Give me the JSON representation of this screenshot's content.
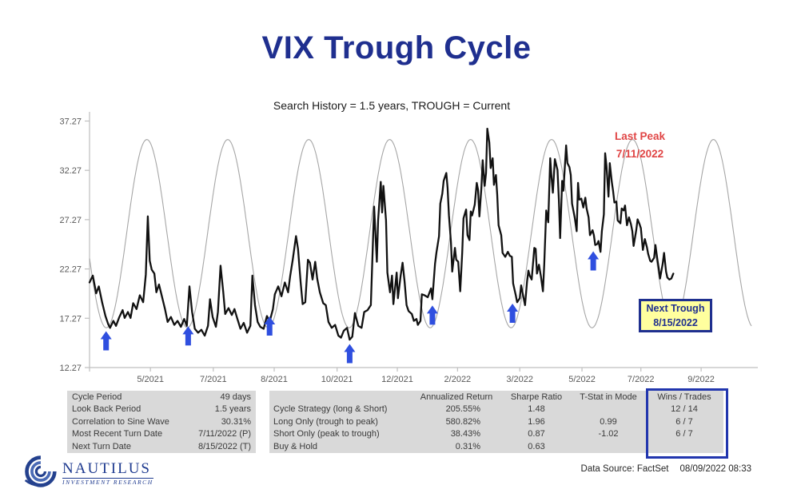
{
  "slide": {
    "title": "VIX Trough Cycle"
  },
  "chart_data": {
    "type": "line",
    "title": "Search History = 1.5 years, TROUGH = Current",
    "xlabel": "",
    "ylabel": "",
    "ylim": [
      12.27,
      38.2
    ],
    "grid": false,
    "axis_color": "#bfbfbf",
    "yticks": [
      "12.27",
      "17.27",
      "22.27",
      "27.27",
      "32.27",
      "37.27"
    ],
    "xticks": [
      {
        "label": "5/2021",
        "pos": 0.092
      },
      {
        "label": "7/2021",
        "pos": 0.187
      },
      {
        "label": "8/2021",
        "pos": 0.279
      },
      {
        "label": "10/2021",
        "pos": 0.374
      },
      {
        "label": "12/2021",
        "pos": 0.465
      },
      {
        "label": "2/2022",
        "pos": 0.556
      },
      {
        "label": "3/2022",
        "pos": 0.65
      },
      {
        "label": "5/2022",
        "pos": 0.744
      },
      {
        "label": "7/2022",
        "pos": 0.833
      },
      {
        "label": "9/2022",
        "pos": 0.924
      }
    ],
    "series": [
      {
        "name": "Trough Cycle Sine Wave",
        "type": "sine",
        "color": "#a6a6a6",
        "min": 16.3,
        "max": 35.4,
        "period": 0.1223,
        "first_trough": 0.0254
      },
      {
        "name": "VIX",
        "type": "line",
        "color": "#111111",
        "points": [
          [
            0,
            20.9
          ],
          [
            0.005,
            21.6
          ],
          [
            0.01,
            19.8
          ],
          [
            0.014,
            20.5
          ],
          [
            0.019,
            18.9
          ],
          [
            0.024,
            17.5
          ],
          [
            0.028,
            16.7
          ],
          [
            0.031,
            16.3
          ],
          [
            0.036,
            17.0
          ],
          [
            0.04,
            16.5
          ],
          [
            0.045,
            17.4
          ],
          [
            0.05,
            18.1
          ],
          [
            0.053,
            17.3
          ],
          [
            0.058,
            17.9
          ],
          [
            0.062,
            17.3
          ],
          [
            0.066,
            18.8
          ],
          [
            0.071,
            18.2
          ],
          [
            0.076,
            19.6
          ],
          [
            0.081,
            18.9
          ],
          [
            0.085,
            21.7
          ],
          [
            0.088,
            27.6
          ],
          [
            0.091,
            23.1
          ],
          [
            0.094,
            22.2
          ],
          [
            0.098,
            21.8
          ],
          [
            0.101,
            19.9
          ],
          [
            0.105,
            20.7
          ],
          [
            0.11,
            19.3
          ],
          [
            0.114,
            18.2
          ],
          [
            0.118,
            16.9
          ],
          [
            0.123,
            17.4
          ],
          [
            0.128,
            16.6
          ],
          [
            0.133,
            17.0
          ],
          [
            0.138,
            16.4
          ],
          [
            0.143,
            17.2
          ],
          [
            0.147,
            16.5
          ],
          [
            0.151,
            20.5
          ],
          [
            0.155,
            17.9
          ],
          [
            0.159,
            16.2
          ],
          [
            0.164,
            15.8
          ],
          [
            0.169,
            16.1
          ],
          [
            0.174,
            15.5
          ],
          [
            0.179,
            16.5
          ],
          [
            0.182,
            19.2
          ],
          [
            0.186,
            17.4
          ],
          [
            0.191,
            16.4
          ],
          [
            0.194,
            17.9
          ],
          [
            0.198,
            22.6
          ],
          [
            0.202,
            19.9
          ],
          [
            0.205,
            17.7
          ],
          [
            0.21,
            18.3
          ],
          [
            0.215,
            17.6
          ],
          [
            0.219,
            18.2
          ],
          [
            0.223,
            17.3
          ],
          [
            0.228,
            16.2
          ],
          [
            0.233,
            16.8
          ],
          [
            0.238,
            15.8
          ],
          [
            0.243,
            16.5
          ],
          [
            0.246,
            21.6
          ],
          [
            0.25,
            18.6
          ],
          [
            0.254,
            16.9
          ],
          [
            0.258,
            16.4
          ],
          [
            0.263,
            16.2
          ],
          [
            0.268,
            17.5
          ],
          [
            0.272,
            16.9
          ],
          [
            0.277,
            18.2
          ],
          [
            0.28,
            19.7
          ],
          [
            0.285,
            20.5
          ],
          [
            0.29,
            19.5
          ],
          [
            0.295,
            20.9
          ],
          [
            0.3,
            19.9
          ],
          [
            0.303,
            21.5
          ],
          [
            0.307,
            23.2
          ],
          [
            0.312,
            25.6
          ],
          [
            0.315,
            24.3
          ],
          [
            0.319,
            20.9
          ],
          [
            0.322,
            18.7
          ],
          [
            0.326,
            18.9
          ],
          [
            0.33,
            23.2
          ],
          [
            0.333,
            22.9
          ],
          [
            0.337,
            21.2
          ],
          [
            0.341,
            23.0
          ],
          [
            0.344,
            21.3
          ],
          [
            0.348,
            19.9
          ],
          [
            0.353,
            18.8
          ],
          [
            0.357,
            18.6
          ],
          [
            0.361,
            16.9
          ],
          [
            0.366,
            16.3
          ],
          [
            0.371,
            16.6
          ],
          [
            0.376,
            15.5
          ],
          [
            0.38,
            15.3
          ],
          [
            0.384,
            16.0
          ],
          [
            0.389,
            16.3
          ],
          [
            0.393,
            15.1
          ],
          [
            0.397,
            15.4
          ],
          [
            0.401,
            17.8
          ],
          [
            0.406,
            16.5
          ],
          [
            0.411,
            16.3
          ],
          [
            0.415,
            17.9
          ],
          [
            0.42,
            18.1
          ],
          [
            0.425,
            18.6
          ],
          [
            0.43,
            28.6
          ],
          [
            0.434,
            23.0
          ],
          [
            0.436,
            27.2
          ],
          [
            0.44,
            31.1
          ],
          [
            0.442,
            28.0
          ],
          [
            0.444,
            30.7
          ],
          [
            0.448,
            27.2
          ],
          [
            0.45,
            21.9
          ],
          [
            0.454,
            19.9
          ],
          [
            0.457,
            21.6
          ],
          [
            0.459,
            18.7
          ],
          [
            0.464,
            21.9
          ],
          [
            0.466,
            19.3
          ],
          [
            0.47,
            21.6
          ],
          [
            0.473,
            22.9
          ],
          [
            0.476,
            21.0
          ],
          [
            0.479,
            18.6
          ],
          [
            0.482,
            18.0
          ],
          [
            0.487,
            17.7
          ],
          [
            0.49,
            17.0
          ],
          [
            0.494,
            17.2
          ],
          [
            0.496,
            16.6
          ],
          [
            0.5,
            17.0
          ],
          [
            0.502,
            19.7
          ],
          [
            0.506,
            19.6
          ],
          [
            0.511,
            19.4
          ],
          [
            0.516,
            20.3
          ],
          [
            0.518,
            19.2
          ],
          [
            0.522,
            22.8
          ],
          [
            0.524,
            23.9
          ],
          [
            0.528,
            25.6
          ],
          [
            0.53,
            28.9
          ],
          [
            0.533,
            29.9
          ],
          [
            0.535,
            31.2
          ],
          [
            0.539,
            32.0
          ],
          [
            0.541,
            30.5
          ],
          [
            0.543,
            27.7
          ],
          [
            0.546,
            25.0
          ],
          [
            0.548,
            22.0
          ],
          [
            0.552,
            24.4
          ],
          [
            0.554,
            23.2
          ],
          [
            0.557,
            23.0
          ],
          [
            0.56,
            20.0
          ],
          [
            0.563,
            23.9
          ],
          [
            0.565,
            27.4
          ],
          [
            0.569,
            28.3
          ],
          [
            0.571,
            25.7
          ],
          [
            0.574,
            25.2
          ],
          [
            0.576,
            28.1
          ],
          [
            0.578,
            27.7
          ],
          [
            0.582,
            28.8
          ],
          [
            0.585,
            31.0
          ],
          [
            0.587,
            30.3
          ],
          [
            0.589,
            27.6
          ],
          [
            0.592,
            30.5
          ],
          [
            0.594,
            33.3
          ],
          [
            0.597,
            30.7
          ],
          [
            0.599,
            32.0
          ],
          [
            0.601,
            36.5
          ],
          [
            0.604,
            35.1
          ],
          [
            0.606,
            32.5
          ],
          [
            0.609,
            33.5
          ],
          [
            0.611,
            30.8
          ],
          [
            0.614,
            31.8
          ],
          [
            0.616,
            29.8
          ],
          [
            0.618,
            26.7
          ],
          [
            0.622,
            25.7
          ],
          [
            0.624,
            23.9
          ],
          [
            0.628,
            23.5
          ],
          [
            0.632,
            24.0
          ],
          [
            0.635,
            23.6
          ],
          [
            0.638,
            23.5
          ],
          [
            0.64,
            20.8
          ],
          [
            0.644,
            19.6
          ],
          [
            0.646,
            18.9
          ],
          [
            0.65,
            19.3
          ],
          [
            0.652,
            20.6
          ],
          [
            0.655,
            19.6
          ],
          [
            0.658,
            18.6
          ],
          [
            0.661,
            21.0
          ],
          [
            0.663,
            22.1
          ],
          [
            0.665,
            21.6
          ],
          [
            0.668,
            21.2
          ],
          [
            0.672,
            24.4
          ],
          [
            0.674,
            24.3
          ],
          [
            0.676,
            21.8
          ],
          [
            0.679,
            22.7
          ],
          [
            0.682,
            21.5
          ],
          [
            0.685,
            20.0
          ],
          [
            0.687,
            22.7
          ],
          [
            0.69,
            28.2
          ],
          [
            0.693,
            27.0
          ],
          [
            0.696,
            33.5
          ],
          [
            0.698,
            31.6
          ],
          [
            0.7,
            30.0
          ],
          [
            0.703,
            33.4
          ],
          [
            0.707,
            32.3
          ],
          [
            0.709,
            29.3
          ],
          [
            0.711,
            25.4
          ],
          [
            0.714,
            31.2
          ],
          [
            0.716,
            30.2
          ],
          [
            0.72,
            34.8
          ],
          [
            0.722,
            33.0
          ],
          [
            0.725,
            32.6
          ],
          [
            0.727,
            31.8
          ],
          [
            0.729,
            28.9
          ],
          [
            0.733,
            27.5
          ],
          [
            0.736,
            26.1
          ],
          [
            0.738,
            31.0
          ],
          [
            0.74,
            29.3
          ],
          [
            0.743,
            29.4
          ],
          [
            0.746,
            28.5
          ],
          [
            0.749,
            29.5
          ],
          [
            0.751,
            28.4
          ],
          [
            0.754,
            27.5
          ],
          [
            0.756,
            25.7
          ],
          [
            0.76,
            26.2
          ],
          [
            0.762,
            25.7
          ],
          [
            0.764,
            24.7
          ],
          [
            0.767,
            24.8
          ],
          [
            0.769,
            25.1
          ],
          [
            0.772,
            24.0
          ],
          [
            0.774,
            26.1
          ],
          [
            0.777,
            27.8
          ],
          [
            0.779,
            34.0
          ],
          [
            0.781,
            32.7
          ],
          [
            0.784,
            29.6
          ],
          [
            0.786,
            33.0
          ],
          [
            0.789,
            31.1
          ],
          [
            0.791,
            30.2
          ],
          [
            0.793,
            29.0
          ],
          [
            0.796,
            29.1
          ],
          [
            0.798,
            27.2
          ],
          [
            0.802,
            26.9
          ],
          [
            0.804,
            28.4
          ],
          [
            0.807,
            28.2
          ],
          [
            0.809,
            28.7
          ],
          [
            0.812,
            26.7
          ],
          [
            0.815,
            27.5
          ],
          [
            0.818,
            26.8
          ],
          [
            0.82,
            26.1
          ],
          [
            0.822,
            24.6
          ],
          [
            0.826,
            26.2
          ],
          [
            0.828,
            27.3
          ],
          [
            0.831,
            26.8
          ],
          [
            0.833,
            26.4
          ],
          [
            0.836,
            24.2
          ],
          [
            0.839,
            25.3
          ],
          [
            0.842,
            24.5
          ],
          [
            0.844,
            23.8
          ],
          [
            0.847,
            23.1
          ],
          [
            0.849,
            23.0
          ],
          [
            0.853,
            23.4
          ],
          [
            0.855,
            24.7
          ],
          [
            0.858,
            23.2
          ],
          [
            0.86,
            22.3
          ],
          [
            0.862,
            21.3
          ],
          [
            0.866,
            22.8
          ],
          [
            0.868,
            23.9
          ],
          [
            0.871,
            22.0
          ],
          [
            0.873,
            21.4
          ],
          [
            0.876,
            21.2
          ],
          [
            0.879,
            21.3
          ],
          [
            0.882,
            21.8
          ]
        ]
      }
    ],
    "trough_arrows": [
      [
        0.025,
        16.2
      ],
      [
        0.149,
        16.7
      ],
      [
        0.272,
        17.7
      ],
      [
        0.393,
        14.9
      ],
      [
        0.518,
        18.8
      ],
      [
        0.639,
        19.0
      ],
      [
        0.761,
        24.3
      ]
    ],
    "arrow_color": "#2f4fdf",
    "annotations": {
      "last_peak": {
        "line1": "Last Peak",
        "line2": "7/11/2022",
        "color": "#e04545"
      },
      "next_trough": {
        "line1": "Next Trough",
        "line2": "8/15/2022",
        "color": "#1f2f8f",
        "bg": "#ffff9e"
      }
    }
  },
  "stats_table": {
    "rows": [
      {
        "label": "Cycle Period",
        "value": "49 days"
      },
      {
        "label": "Look Back Period",
        "value": "1.5 years"
      },
      {
        "label": "Correlation to Sine Wave",
        "value": "30.31%"
      },
      {
        "label": "Most Recent Turn Date",
        "value": "7/11/2022 (P)"
      },
      {
        "label": "Next Turn Date",
        "value": "8/15/2022 (T)"
      }
    ]
  },
  "perf_table": {
    "headers": [
      "",
      "Annualized Return",
      "Sharpe Ratio",
      "T-Stat in Mode",
      "Wins / Trades"
    ],
    "rows": [
      {
        "label": "Cycle Strategy (long & Short)",
        "cells": [
          "205.55%",
          "1.48",
          "",
          "12 / 14"
        ]
      },
      {
        "label": "Long Only (trough to peak)",
        "cells": [
          "580.82%",
          "1.96",
          "0.99",
          "6 / 7"
        ]
      },
      {
        "label": "Short Only (peak to trough)",
        "cells": [
          "38.43%",
          "0.87",
          "-1.02",
          "6 / 7"
        ]
      },
      {
        "label": "Buy & Hold",
        "cells": [
          "0.31%",
          "0.63",
          "",
          ""
        ]
      }
    ]
  },
  "logo": {
    "name": "NAUTILUS",
    "tagline": "INVESTMENT RESEARCH"
  },
  "footer": {
    "source": "Data Source: FactSet",
    "timestamp": "08/09/2022 08:33"
  }
}
